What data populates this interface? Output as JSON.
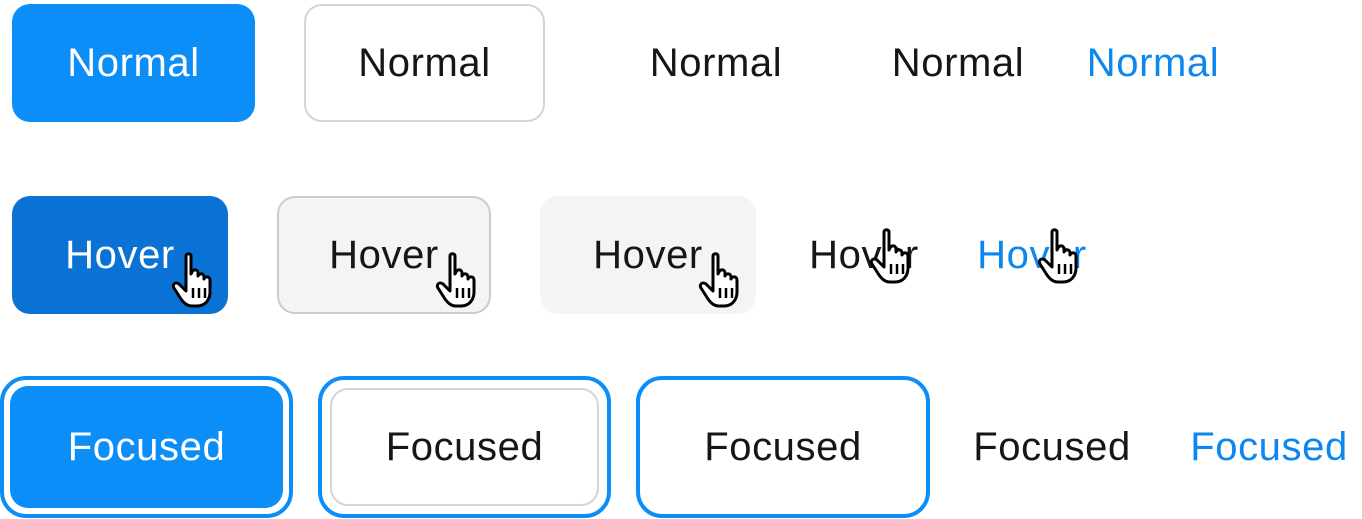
{
  "rows": {
    "normal": {
      "primary": "Normal",
      "default": "Normal",
      "secondary": "Normal",
      "text": "Normal",
      "link": "Normal"
    },
    "hover": {
      "primary": "Hover",
      "default": "Hover",
      "secondary": "Hover",
      "text": "Hover",
      "link": "Hover"
    },
    "focused": {
      "primary": "Focused",
      "default": "Focused",
      "secondary": "Focused",
      "text": "Focused",
      "link": "Focused"
    }
  },
  "colors": {
    "primary": "#0b8ef7",
    "primary_hover": "#0a72d5",
    "link": "#0d87ee",
    "text": "#161616",
    "border": "#d3d3d8",
    "hover_bg": "#f4f4f6",
    "focus_ring": "#0b8ef7"
  },
  "icons": {
    "cursor": "hand-pointer-icon"
  }
}
